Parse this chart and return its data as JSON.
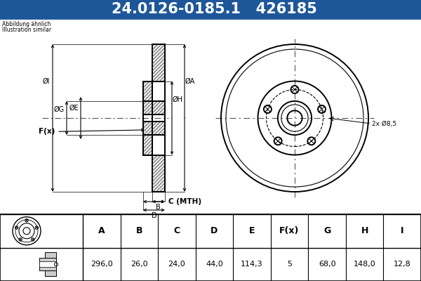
{
  "title_text": "24.0126-0185.1   426185",
  "title_bg_color": "#1e5799",
  "title_text_color": "#ffffff",
  "title_fontsize": 15,
  "subtitle_line1": "Abbildung ähnlich",
  "subtitle_line2": "Illustration similar",
  "table_headers": [
    "A",
    "B",
    "C",
    "D",
    "E",
    "F(x)",
    "G",
    "H",
    "I"
  ],
  "table_values": [
    "296,0",
    "26,0",
    "24,0",
    "44,0",
    "114,3",
    "5",
    "68,0",
    "148,0",
    "12,8"
  ],
  "label_A": "ØA",
  "label_G": "ØG",
  "label_E": "ØE",
  "label_H": "ØH",
  "label_F": "F(x)",
  "label_I": "ØI",
  "label_B": "B",
  "label_C": "C (MTH)",
  "label_D": "D",
  "label_2x": "2x Ø8,5",
  "drawing_color": "#000000",
  "hatch_color": "#333333",
  "dim_line_color": "#000000",
  "center_line_color": "#555555"
}
